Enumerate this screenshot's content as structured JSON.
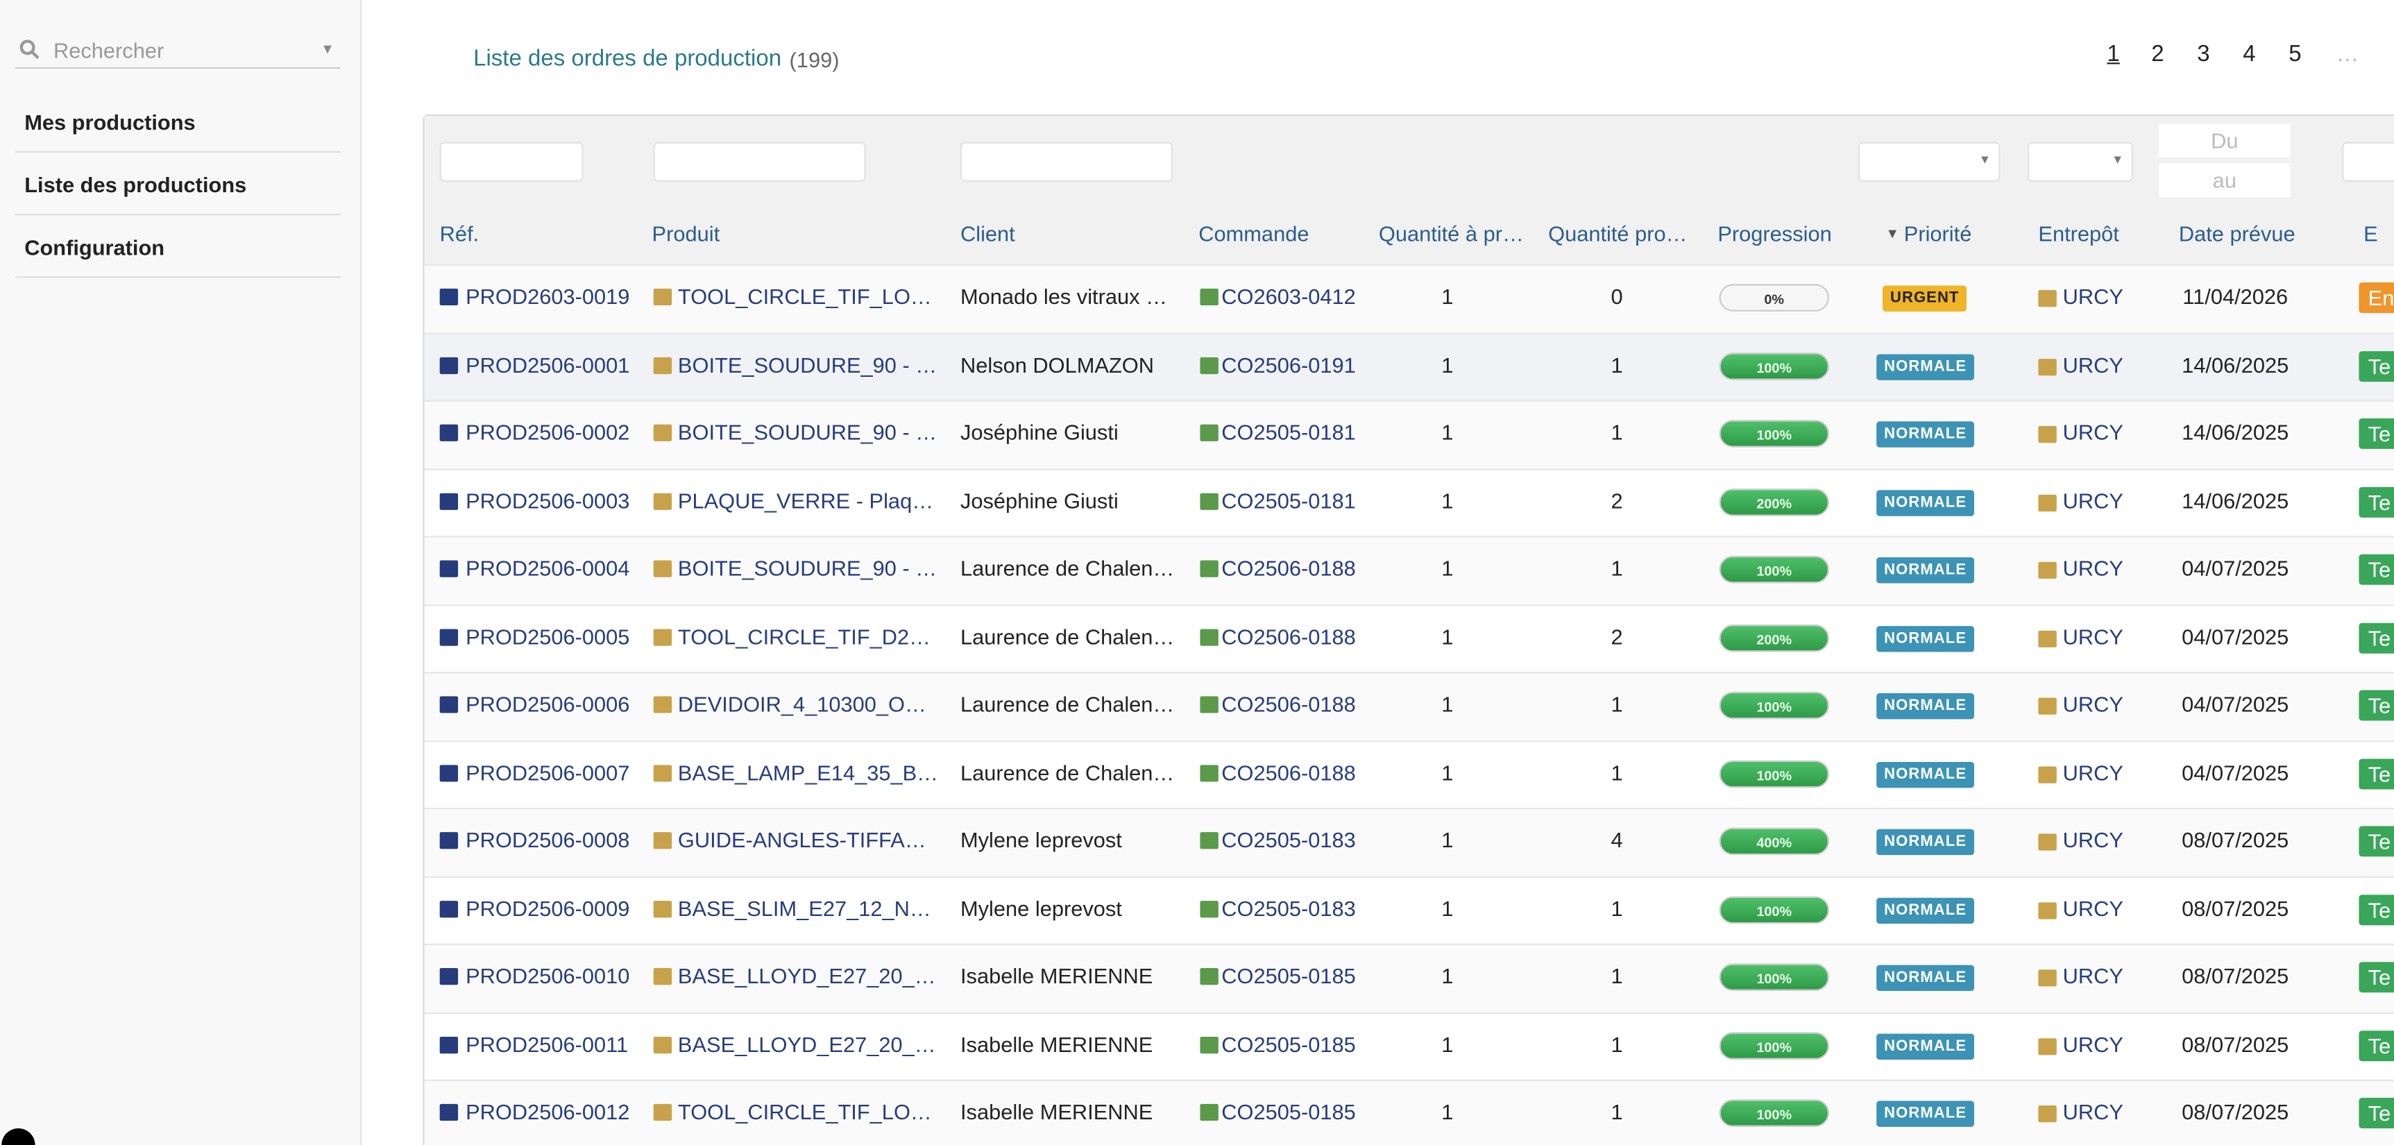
{
  "sidebar": {
    "search_placeholder": "Rechercher",
    "menu": [
      "Mes productions",
      "Liste des productions",
      "Configuration"
    ]
  },
  "header": {
    "title": "Liste des ordres de production",
    "count": "(199)",
    "pages": [
      "1",
      "2",
      "3",
      "4",
      "5",
      "…"
    ]
  },
  "filters": {
    "date_from": "Du",
    "date_to": "au"
  },
  "table": {
    "columns": [
      "Réf.",
      "Produit",
      "Client",
      "Commande",
      "Quantité à pr…",
      "Quantité pro…",
      "Progression",
      "Priorité",
      "Entrepôt",
      "Date prévue",
      "E"
    ],
    "rows": [
      [
        "PROD2603-0019",
        "TOOL_CIRCLE_TIF_LO…",
        "Monado les vitraux …",
        "CO2603-0412",
        "1",
        "0",
        "0%",
        "URGENT",
        "URCY",
        "11/04/2026",
        "En"
      ],
      [
        "PROD2506-0001",
        "BOITE_SOUDURE_90 - …",
        "Nelson DOLMAZON",
        "CO2506-0191",
        "1",
        "1",
        "100%",
        "NORMALE",
        "URCY",
        "14/06/2025",
        "Te"
      ],
      [
        "PROD2506-0002",
        "BOITE_SOUDURE_90 - …",
        "Joséphine Giusti",
        "CO2505-0181",
        "1",
        "1",
        "100%",
        "NORMALE",
        "URCY",
        "14/06/2025",
        "Te"
      ],
      [
        "PROD2506-0003",
        "PLAQUE_VERRE - Plaq…",
        "Joséphine Giusti",
        "CO2505-0181",
        "1",
        "2",
        "200%",
        "NORMALE",
        "URCY",
        "14/06/2025",
        "Te"
      ],
      [
        "PROD2506-0004",
        "BOITE_SOUDURE_90 - …",
        "Laurence de Chalen…",
        "CO2506-0188",
        "1",
        "1",
        "100%",
        "NORMALE",
        "URCY",
        "04/07/2025",
        "Te"
      ],
      [
        "PROD2506-0005",
        "TOOL_CIRCLE_TIF_D2…",
        "Laurence de Chalen…",
        "CO2506-0188",
        "1",
        "2",
        "200%",
        "NORMALE",
        "URCY",
        "04/07/2025",
        "Te"
      ],
      [
        "PROD2506-0006",
        "DEVIDOIR_4_10300_O…",
        "Laurence de Chalen…",
        "CO2506-0188",
        "1",
        "1",
        "100%",
        "NORMALE",
        "URCY",
        "04/07/2025",
        "Te"
      ],
      [
        "PROD2506-0007",
        "BASE_LAMP_E14_35_B…",
        "Laurence de Chalen…",
        "CO2506-0188",
        "1",
        "1",
        "100%",
        "NORMALE",
        "URCY",
        "04/07/2025",
        "Te"
      ],
      [
        "PROD2506-0008",
        "GUIDE-ANGLES-TIFFA…",
        "Mylene leprevost",
        "CO2505-0183",
        "1",
        "4",
        "400%",
        "NORMALE",
        "URCY",
        "08/07/2025",
        "Te"
      ],
      [
        "PROD2506-0009",
        "BASE_SLIM_E27_12_N…",
        "Mylene leprevost",
        "CO2505-0183",
        "1",
        "1",
        "100%",
        "NORMALE",
        "URCY",
        "08/07/2025",
        "Te"
      ],
      [
        "PROD2506-0010",
        "BASE_LLOYD_E27_20_…",
        "Isabelle MERIENNE",
        "CO2505-0185",
        "1",
        "1",
        "100%",
        "NORMALE",
        "URCY",
        "08/07/2025",
        "Te"
      ],
      [
        "PROD2506-0011",
        "BASE_LLOYD_E27_20_…",
        "Isabelle MERIENNE",
        "CO2505-0185",
        "1",
        "1",
        "100%",
        "NORMALE",
        "URCY",
        "08/07/2025",
        "Te"
      ],
      [
        "PROD2506-0012",
        "TOOL_CIRCLE_TIF_LO…",
        "Isabelle MERIENNE",
        "CO2505-0185",
        "1",
        "1",
        "100%",
        "NORMALE",
        "URCY",
        "08/07/2025",
        "Te"
      ]
    ]
  }
}
